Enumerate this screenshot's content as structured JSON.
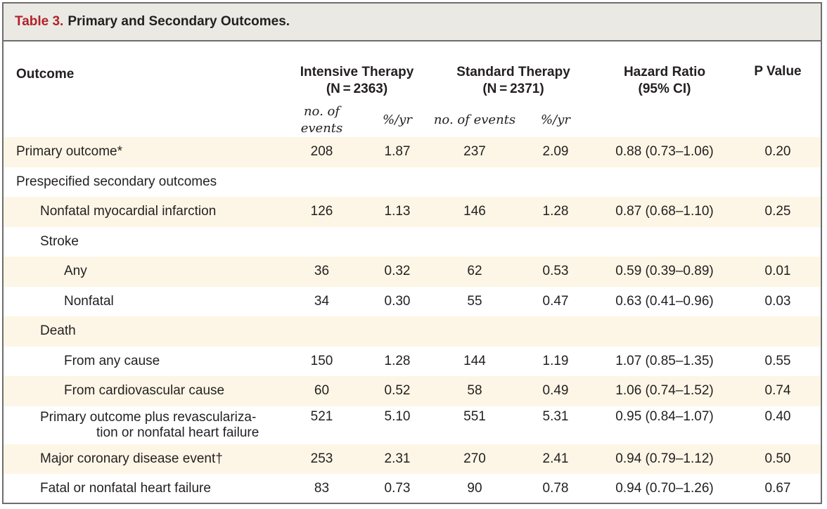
{
  "table": {
    "label": "Table 3.",
    "title": "Primary and Secondary Outcomes.",
    "headers": {
      "outcome": "Outcome",
      "intensive": "Intensive Therapy",
      "intensive_n": "(N = 2363)",
      "standard": "Standard Therapy",
      "standard_n": "(N = 2371)",
      "hazard": "Hazard Ratio",
      "hazard_ci": "(95% CI)",
      "pvalue": "P Value",
      "sub_events_1": "no. of events",
      "sub_rate_1": "%/yr",
      "sub_events_2": "no. of events",
      "sub_rate_2": "%/yr"
    },
    "rows": [
      {
        "label": "Primary outcome*",
        "ie": "208",
        "ir": "1.87",
        "se": "237",
        "sr": "2.09",
        "hr": "0.88 (0.73–1.06)",
        "p": "0.20"
      },
      {
        "label": "Prespecified secondary outcomes",
        "ie": "",
        "ir": "",
        "se": "",
        "sr": "",
        "hr": "",
        "p": ""
      },
      {
        "label": "Nonfatal myocardial infarction",
        "ie": "126",
        "ir": "1.13",
        "se": "146",
        "sr": "1.28",
        "hr": "0.87 (0.68–1.10)",
        "p": "0.25"
      },
      {
        "label": "Stroke",
        "ie": "",
        "ir": "",
        "se": "",
        "sr": "",
        "hr": "",
        "p": ""
      },
      {
        "label": "Any",
        "ie": "36",
        "ir": "0.32",
        "se": "62",
        "sr": "0.53",
        "hr": "0.59 (0.39–0.89)",
        "p": "0.01"
      },
      {
        "label": "Nonfatal",
        "ie": "34",
        "ir": "0.30",
        "se": "55",
        "sr": "0.47",
        "hr": "0.63 (0.41–0.96)",
        "p": "0.03"
      },
      {
        "label": "Death",
        "ie": "",
        "ir": "",
        "se": "",
        "sr": "",
        "hr": "",
        "p": ""
      },
      {
        "label": "From any cause",
        "ie": "150",
        "ir": "1.28",
        "se": "144",
        "sr": "1.19",
        "hr": "1.07 (0.85–1.35)",
        "p": "0.55"
      },
      {
        "label": "From cardiovascular cause",
        "ie": "60",
        "ir": "0.52",
        "se": "58",
        "sr": "0.49",
        "hr": "1.06 (0.74–1.52)",
        "p": "0.74"
      },
      {
        "label_line1": "Primary outcome plus revasculariza-",
        "label_line2": "tion or nonfatal heart failure",
        "ie": "521",
        "ir": "5.10",
        "se": "551",
        "sr": "5.31",
        "hr": "0.95 (0.84–1.07)",
        "p": "0.40"
      },
      {
        "label": "Major coronary disease event†",
        "ie": "253",
        "ir": "2.31",
        "se": "270",
        "sr": "2.41",
        "hr": "0.94 (0.79–1.12)",
        "p": "0.50"
      },
      {
        "label": "Fatal or nonfatal heart failure",
        "ie": "83",
        "ir": "0.73",
        "se": "90",
        "sr": "0.78",
        "hr": "0.94 (0.70–1.26)",
        "p": "0.67"
      }
    ]
  }
}
